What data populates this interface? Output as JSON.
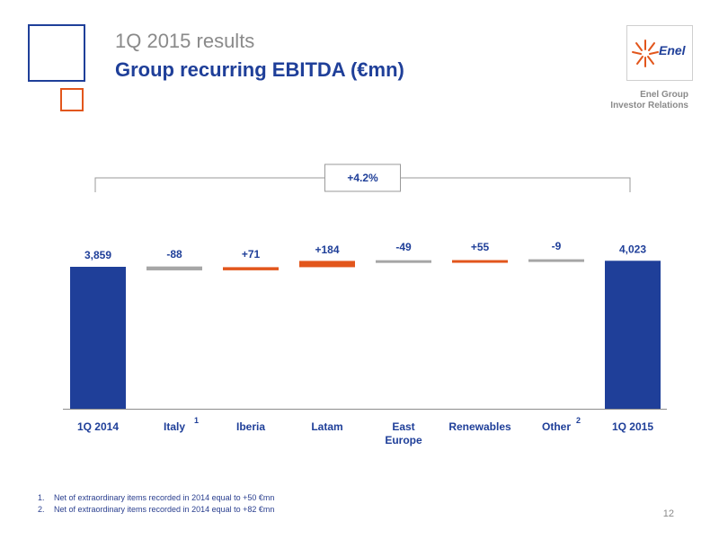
{
  "header": {
    "subtitle": "1Q 2015 results",
    "title": "Group recurring EBITDA (€mn)"
  },
  "brand": {
    "logo_text": "Enel",
    "group_label": "Enel Group",
    "ir_label": "Investor Relations",
    "colors": {
      "blue": "#1f3f99",
      "orange": "#e2561c",
      "gray": "#a6a6a6"
    }
  },
  "chart_data": {
    "type": "bar",
    "subtype": "waterfall",
    "categories": [
      "1Q 2014",
      "Italy",
      "Iberia",
      "Latam",
      "East Europe",
      "Renewables",
      "Other",
      "1Q 2015"
    ],
    "values": [
      3859,
      -88,
      71,
      184,
      -49,
      55,
      -9,
      4023
    ],
    "kind": [
      "total",
      "delta",
      "delta",
      "delta",
      "delta",
      "delta",
      "delta",
      "total"
    ],
    "data_labels": [
      "3,859",
      "-88",
      "+71",
      "+184",
      "-49",
      "+55",
      "-9",
      "4,023"
    ],
    "category_superscripts": [
      "",
      "1",
      "",
      "",
      "",
      "",
      "2",
      ""
    ],
    "change_label": "+4.2%",
    "colors": {
      "total": "#1f3f99",
      "positive": "#e2561c",
      "negative": "#a6a6a6"
    },
    "ylim": [
      0,
      4200
    ]
  },
  "footnotes": [
    {
      "num": "1.",
      "text": "Net of extraordinary items recorded in 2014 equal to +50 €mn"
    },
    {
      "num": "2.",
      "text": "Net of extraordinary items recorded in 2014 equal to +82 €mn"
    }
  ],
  "page_number": "12"
}
